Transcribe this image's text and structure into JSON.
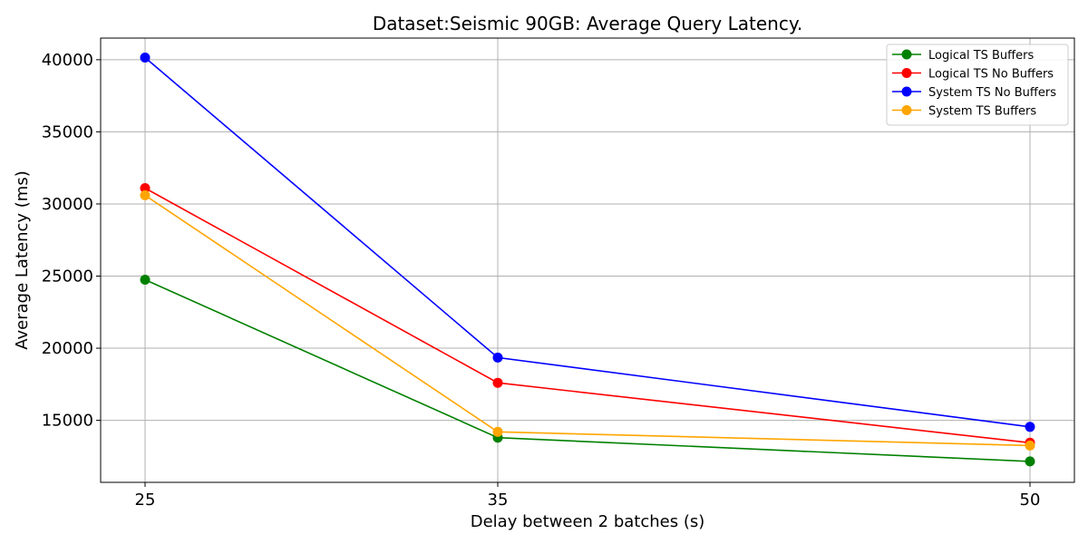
{
  "chart_data": {
    "type": "line",
    "title": "Dataset:Seismic 90GB: Average Query Latency.",
    "xlabel": "Delay between 2 batches (s)",
    "ylabel": "Average Latency (ms)",
    "x": [
      "25",
      "35",
      "50"
    ],
    "yticks": [
      15000,
      20000,
      25000,
      30000,
      35000,
      40000
    ],
    "ylim": [
      10700,
      41500
    ],
    "grid": true,
    "legend_position": "top-right",
    "series": [
      {
        "name": "Logical TS Buffers",
        "color": "#008000",
        "values": [
          24750,
          13800,
          12150
        ]
      },
      {
        "name": "Logical TS No Buffers",
        "color": "#ff0000",
        "values": [
          31100,
          17600,
          13450
        ]
      },
      {
        "name": "System TS No Buffers",
        "color": "#0000ff",
        "values": [
          40150,
          19350,
          14550
        ]
      },
      {
        "name": "System TS Buffers",
        "color": "#ffa500",
        "values": [
          30600,
          14200,
          13250
        ]
      }
    ]
  }
}
